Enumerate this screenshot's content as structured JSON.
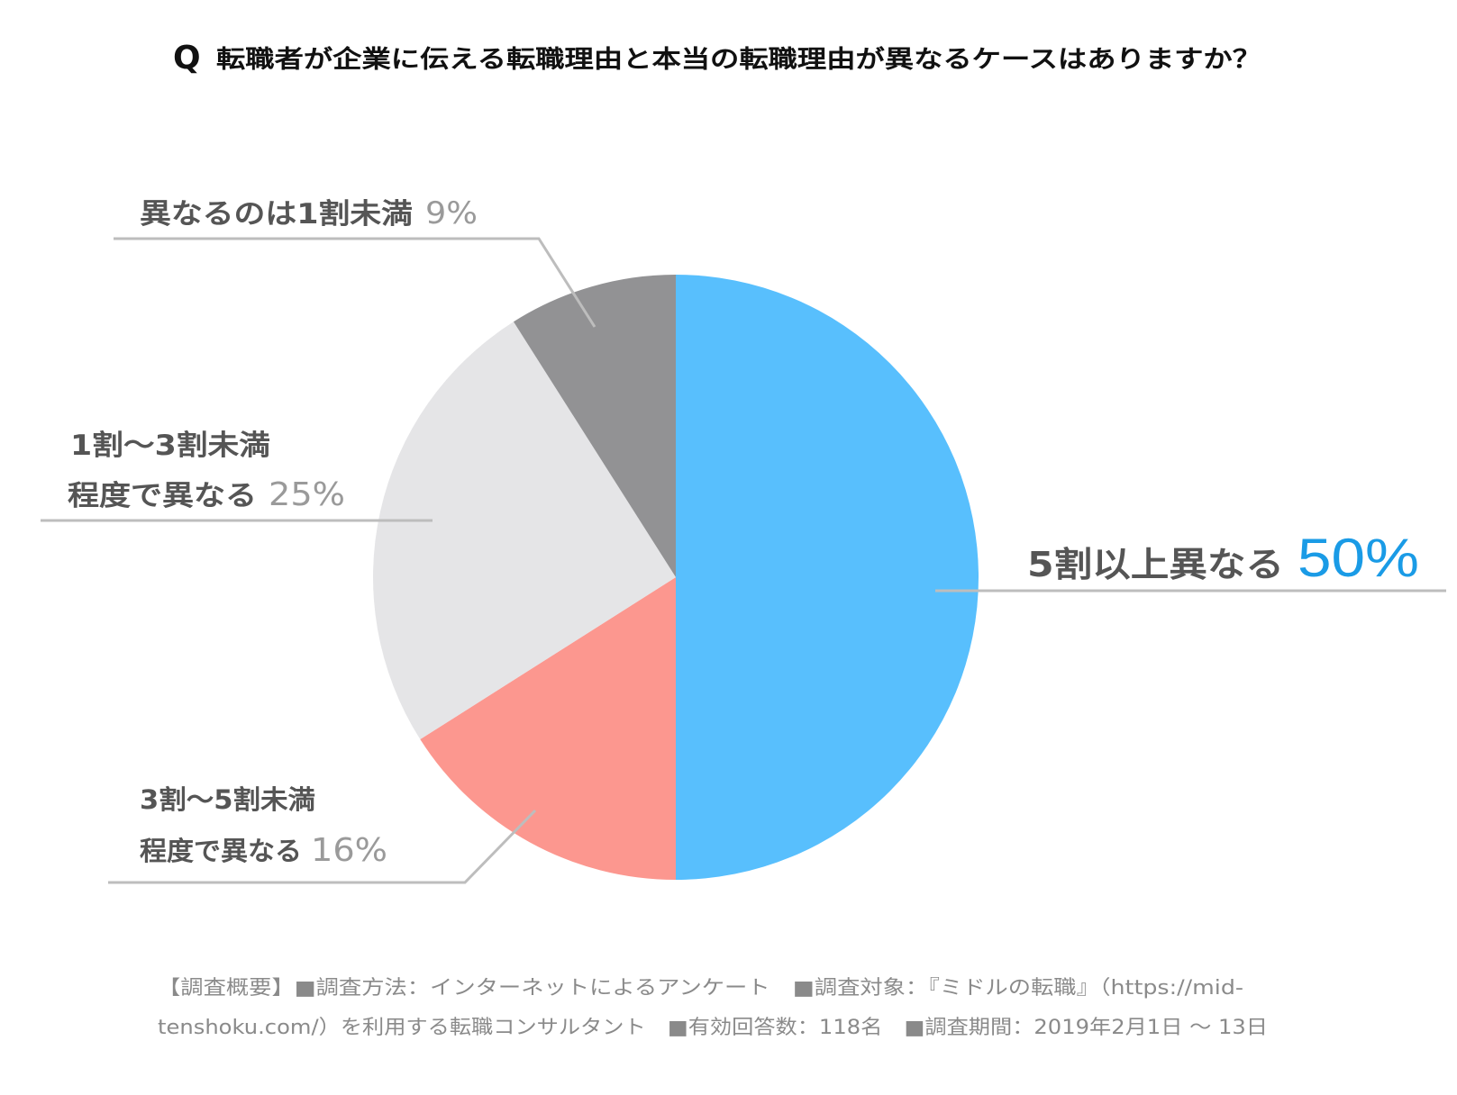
{
  "chart_data": {
    "type": "pie",
    "title_mark": "Q",
    "title": "転職者が企業に伝える転職理由と本当の転職理由が異なるケースはありますか？",
    "slices": [
      {
        "key": "over5",
        "line1": "5割以上異なる",
        "line2": "",
        "value": 50,
        "value_label": "50%",
        "color": "#58bffd"
      },
      {
        "key": "3to5",
        "line1": "3割〜5割未満",
        "line2": "程度で異なる",
        "value": 16,
        "value_label": "16%",
        "color": "#fc978f"
      },
      {
        "key": "1to3",
        "line1": "1割〜3割未満",
        "line2": "程度で異なる",
        "value": 25,
        "value_label": "25%",
        "color": "#e5e5e7"
      },
      {
        "key": "under1",
        "line1": "異なるのは1割未満",
        "line2": "",
        "value": 9,
        "value_label": "9%",
        "color": "#929294"
      }
    ],
    "start_angle_deg": 0,
    "direction": "clockwise"
  },
  "footer": {
    "line1": "【調査概要】■調査方法：インターネットによるアンケート　■調査対象：『ミドルの転職』（https://mid-",
    "line2": "tenshoku.com/）を利用する転職コンサルタント　■有効回答数：118名　■調査期間：2019年2月1日 〜 13日"
  }
}
